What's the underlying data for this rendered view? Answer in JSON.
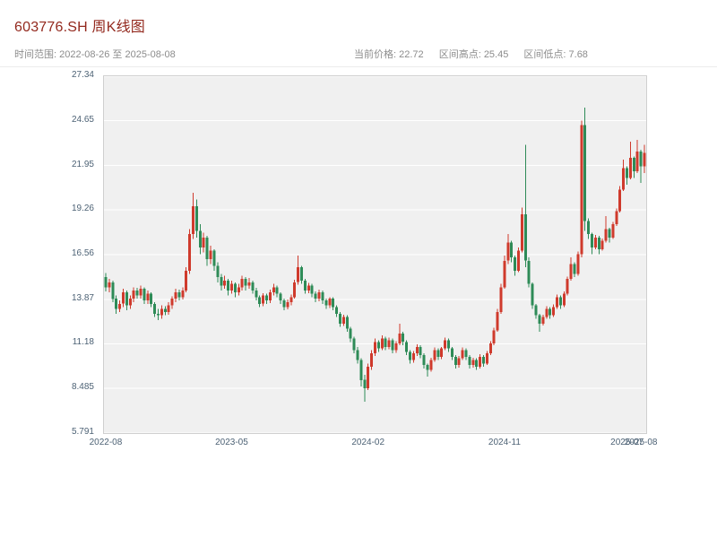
{
  "header": {
    "title": "603776.SH 周K线图",
    "time_range": "时间范围: 2022-08-26 至 2025-08-08",
    "current_price": "当前价格: 22.72",
    "range_high": "区间高点: 25.45",
    "range_low": "区间低点: 7.68"
  },
  "colors": {
    "title": "#93291e",
    "subtitle": "#8c8c8c",
    "axis_label": "#4d6275",
    "up": "#cf3a2c",
    "down": "#2e8b57",
    "plot_bg": "#f0f0f0",
    "grid": "#ffffff"
  },
  "chart_data": {
    "type": "candlestick",
    "title": "603776.SH 周K线图",
    "symbol": "603776.SH",
    "period": "weekly",
    "date_start": "2022-08-26",
    "date_end": "2025-08-08",
    "current_price": 22.72,
    "range_high": 25.45,
    "range_low": 7.68,
    "ylim": [
      5.791,
      27.34
    ],
    "grid": "horizontal",
    "y_tick_values": [
      5.791,
      8.485,
      11.18,
      13.87,
      16.56,
      19.26,
      21.95,
      24.65,
      27.34
    ],
    "y_tick_labels": [
      "5.791",
      "8.485",
      "11.18",
      "13.87",
      "16.56",
      "19.26",
      "21.95",
      "24.65",
      "27.34"
    ],
    "x_ticks": [
      {
        "week": 0,
        "label": "2022-08"
      },
      {
        "week": 36,
        "label": "2023-05"
      },
      {
        "week": 75,
        "label": "2024-02"
      },
      {
        "week": 114,
        "label": "2024-11"
      },
      {
        "week": 149,
        "label": "2025-07"
      },
      {
        "week": 153,
        "label": "2025-08"
      }
    ],
    "candles": [
      [
        15.2,
        15.45,
        14.35,
        14.6
      ],
      [
        14.6,
        15.1,
        14.3,
        14.9
      ],
      [
        14.9,
        15.0,
        13.7,
        13.9
      ],
      [
        13.9,
        14.1,
        13.0,
        13.3
      ],
      [
        13.3,
        13.8,
        13.1,
        13.6
      ],
      [
        13.6,
        14.5,
        13.4,
        14.3
      ],
      [
        14.3,
        14.4,
        13.2,
        13.5
      ],
      [
        13.5,
        14.1,
        13.3,
        13.9
      ],
      [
        13.9,
        14.6,
        13.7,
        14.4
      ],
      [
        14.4,
        14.55,
        13.9,
        14.1
      ],
      [
        14.1,
        14.7,
        13.9,
        14.5
      ],
      [
        14.5,
        14.6,
        13.6,
        13.8
      ],
      [
        13.8,
        14.4,
        13.6,
        14.2
      ],
      [
        14.2,
        14.3,
        13.4,
        13.6
      ],
      [
        13.6,
        13.7,
        12.8,
        13.0
      ],
      [
        13.0,
        13.3,
        12.6,
        12.9
      ],
      [
        12.9,
        13.5,
        12.7,
        13.3
      ],
      [
        13.3,
        13.45,
        12.9,
        13.1
      ],
      [
        13.1,
        13.7,
        12.95,
        13.5
      ],
      [
        13.5,
        14.05,
        13.3,
        13.9
      ],
      [
        13.9,
        14.5,
        13.7,
        14.3
      ],
      [
        14.3,
        14.45,
        13.8,
        14.0
      ],
      [
        14.0,
        14.6,
        13.85,
        14.4
      ],
      [
        14.4,
        15.8,
        14.3,
        15.6
      ],
      [
        15.6,
        18.1,
        15.4,
        17.8
      ],
      [
        17.8,
        20.3,
        17.5,
        19.5
      ],
      [
        19.5,
        19.9,
        17.6,
        18.0
      ],
      [
        18.0,
        18.4,
        16.6,
        17.0
      ],
      [
        17.0,
        17.9,
        16.7,
        17.6
      ],
      [
        17.6,
        17.7,
        15.9,
        16.3
      ],
      [
        16.3,
        17.1,
        16.0,
        16.8
      ],
      [
        16.8,
        16.9,
        15.6,
        15.9
      ],
      [
        15.9,
        16.1,
        14.9,
        15.2
      ],
      [
        15.2,
        15.4,
        14.4,
        14.7
      ],
      [
        14.7,
        15.3,
        14.5,
        15.0
      ],
      [
        15.0,
        15.1,
        14.1,
        14.4
      ],
      [
        14.4,
        15.0,
        14.2,
        14.8
      ],
      [
        14.8,
        14.9,
        14.0,
        14.3
      ],
      [
        14.3,
        14.8,
        14.1,
        14.6
      ],
      [
        14.6,
        15.3,
        14.4,
        15.1
      ],
      [
        15.1,
        15.2,
        14.4,
        14.7
      ],
      [
        14.7,
        15.15,
        14.5,
        14.9
      ],
      [
        14.9,
        15.0,
        14.2,
        14.4
      ],
      [
        14.4,
        14.55,
        13.8,
        14.0
      ],
      [
        14.0,
        14.1,
        13.4,
        13.6
      ],
      [
        13.6,
        14.25,
        13.45,
        14.1
      ],
      [
        14.1,
        14.2,
        13.6,
        13.8
      ],
      [
        13.8,
        14.45,
        13.65,
        14.3
      ],
      [
        14.3,
        14.8,
        14.1,
        14.6
      ],
      [
        14.6,
        14.7,
        14.0,
        14.2
      ],
      [
        14.2,
        14.3,
        13.6,
        13.8
      ],
      [
        13.8,
        13.9,
        13.2,
        13.4
      ],
      [
        13.4,
        13.85,
        13.25,
        13.7
      ],
      [
        13.7,
        14.15,
        13.5,
        14.0
      ],
      [
        14.0,
        15.05,
        13.9,
        14.9
      ],
      [
        14.9,
        16.5,
        14.75,
        15.8
      ],
      [
        15.8,
        15.9,
        14.8,
        15.0
      ],
      [
        15.0,
        15.1,
        14.2,
        14.4
      ],
      [
        14.4,
        14.85,
        14.25,
        14.7
      ],
      [
        14.7,
        14.8,
        14.0,
        14.2
      ],
      [
        14.2,
        14.35,
        13.7,
        13.9
      ],
      [
        13.9,
        14.45,
        13.75,
        14.3
      ],
      [
        14.3,
        14.4,
        13.6,
        13.8
      ],
      [
        13.8,
        13.9,
        13.3,
        13.5
      ],
      [
        13.5,
        14.0,
        13.35,
        13.9
      ],
      [
        13.9,
        14.0,
        13.2,
        13.4
      ],
      [
        13.4,
        13.5,
        12.8,
        13.0
      ],
      [
        13.0,
        13.1,
        12.2,
        12.4
      ],
      [
        12.4,
        12.95,
        12.25,
        12.8
      ],
      [
        12.8,
        12.9,
        11.9,
        12.1
      ],
      [
        12.1,
        12.2,
        11.3,
        11.5
      ],
      [
        11.5,
        11.6,
        10.6,
        10.8
      ],
      [
        10.8,
        11.0,
        10.0,
        10.2
      ],
      [
        10.2,
        10.3,
        8.6,
        9.0
      ],
      [
        9.0,
        9.3,
        7.68,
        8.5
      ],
      [
        8.5,
        10.0,
        8.4,
        9.8
      ],
      [
        9.8,
        10.8,
        9.6,
        10.6
      ],
      [
        10.6,
        11.5,
        10.45,
        11.3
      ],
      [
        11.3,
        11.4,
        10.7,
        10.9
      ],
      [
        10.9,
        11.7,
        10.8,
        11.5
      ],
      [
        11.5,
        11.6,
        10.8,
        11.0
      ],
      [
        11.0,
        11.55,
        10.85,
        11.4
      ],
      [
        11.4,
        11.5,
        10.6,
        10.8
      ],
      [
        10.8,
        11.35,
        10.65,
        11.2
      ],
      [
        11.2,
        12.4,
        11.1,
        11.8
      ],
      [
        11.8,
        11.9,
        11.1,
        11.3
      ],
      [
        11.3,
        11.4,
        10.5,
        10.7
      ],
      [
        10.7,
        10.8,
        10.0,
        10.2
      ],
      [
        10.2,
        10.75,
        10.05,
        10.6
      ],
      [
        10.6,
        11.15,
        10.45,
        11.0
      ],
      [
        11.0,
        11.1,
        10.3,
        10.5
      ],
      [
        10.5,
        10.6,
        9.7,
        9.9
      ],
      [
        9.9,
        10.0,
        9.2,
        9.6
      ],
      [
        9.6,
        10.35,
        9.5,
        10.2
      ],
      [
        10.2,
        10.95,
        10.1,
        10.8
      ],
      [
        10.8,
        10.9,
        10.2,
        10.4
      ],
      [
        10.4,
        11.0,
        10.25,
        10.9
      ],
      [
        10.9,
        11.55,
        10.8,
        11.4
      ],
      [
        11.4,
        11.5,
        10.7,
        10.9
      ],
      [
        10.9,
        11.0,
        10.2,
        10.4
      ],
      [
        10.4,
        10.5,
        9.7,
        9.9
      ],
      [
        9.9,
        10.45,
        9.75,
        10.3
      ],
      [
        10.3,
        10.95,
        10.2,
        10.8
      ],
      [
        10.8,
        10.9,
        10.2,
        10.4
      ],
      [
        10.4,
        10.5,
        9.7,
        9.9
      ],
      [
        9.9,
        10.35,
        9.75,
        10.2
      ],
      [
        10.2,
        10.3,
        9.6,
        9.8
      ],
      [
        9.8,
        10.55,
        9.7,
        10.4
      ],
      [
        10.4,
        10.5,
        9.8,
        10.0
      ],
      [
        10.0,
        10.75,
        9.9,
        10.6
      ],
      [
        10.6,
        11.35,
        10.5,
        11.2
      ],
      [
        11.2,
        12.15,
        11.1,
        12.0
      ],
      [
        12.0,
        13.3,
        11.9,
        13.1
      ],
      [
        13.1,
        14.8,
        13.0,
        14.6
      ],
      [
        14.6,
        16.5,
        14.5,
        16.2
      ],
      [
        16.2,
        17.8,
        16.0,
        17.3
      ],
      [
        17.3,
        17.4,
        16.1,
        16.4
      ],
      [
        16.4,
        16.5,
        15.3,
        15.6
      ],
      [
        15.6,
        17.0,
        15.5,
        16.8
      ],
      [
        16.8,
        19.4,
        16.7,
        19.0
      ],
      [
        19.0,
        23.2,
        15.8,
        16.2
      ],
      [
        16.2,
        16.4,
        14.6,
        14.8
      ],
      [
        14.8,
        14.9,
        13.3,
        13.5
      ],
      [
        13.5,
        13.6,
        12.7,
        12.9
      ],
      [
        12.9,
        13.0,
        11.9,
        12.4
      ],
      [
        12.4,
        12.95,
        12.3,
        12.8
      ],
      [
        12.8,
        13.45,
        12.7,
        13.3
      ],
      [
        13.3,
        13.4,
        12.7,
        12.9
      ],
      [
        12.9,
        13.55,
        12.8,
        13.4
      ],
      [
        13.4,
        14.15,
        13.3,
        14.0
      ],
      [
        14.0,
        14.1,
        13.3,
        13.5
      ],
      [
        13.5,
        14.35,
        13.4,
        14.2
      ],
      [
        14.2,
        15.25,
        14.1,
        15.1
      ],
      [
        15.1,
        16.4,
        15.0,
        16.0
      ],
      [
        16.0,
        16.1,
        15.2,
        15.4
      ],
      [
        15.4,
        16.75,
        15.3,
        16.6
      ],
      [
        16.6,
        24.65,
        16.4,
        24.4
      ],
      [
        24.4,
        25.45,
        18.0,
        18.6
      ],
      [
        18.6,
        18.75,
        17.5,
        17.8
      ],
      [
        17.8,
        17.9,
        16.6,
        17.0
      ],
      [
        17.0,
        17.75,
        16.9,
        17.6
      ],
      [
        17.6,
        17.7,
        16.6,
        16.9
      ],
      [
        16.9,
        17.55,
        16.8,
        17.4
      ],
      [
        17.4,
        18.9,
        17.3,
        18.1
      ],
      [
        18.1,
        18.2,
        17.3,
        17.6
      ],
      [
        17.6,
        18.55,
        17.5,
        18.4
      ],
      [
        18.4,
        19.35,
        18.3,
        19.2
      ],
      [
        19.2,
        20.7,
        19.1,
        20.5
      ],
      [
        20.5,
        22.3,
        20.4,
        21.8
      ],
      [
        21.8,
        21.9,
        20.8,
        21.2
      ],
      [
        21.2,
        23.4,
        21.1,
        22.4
      ],
      [
        22.4,
        22.5,
        21.2,
        21.6
      ],
      [
        21.6,
        23.5,
        21.5,
        22.8
      ],
      [
        22.8,
        22.9,
        20.9,
        21.9
      ],
      [
        21.9,
        23.2,
        21.5,
        22.72
      ]
    ]
  }
}
